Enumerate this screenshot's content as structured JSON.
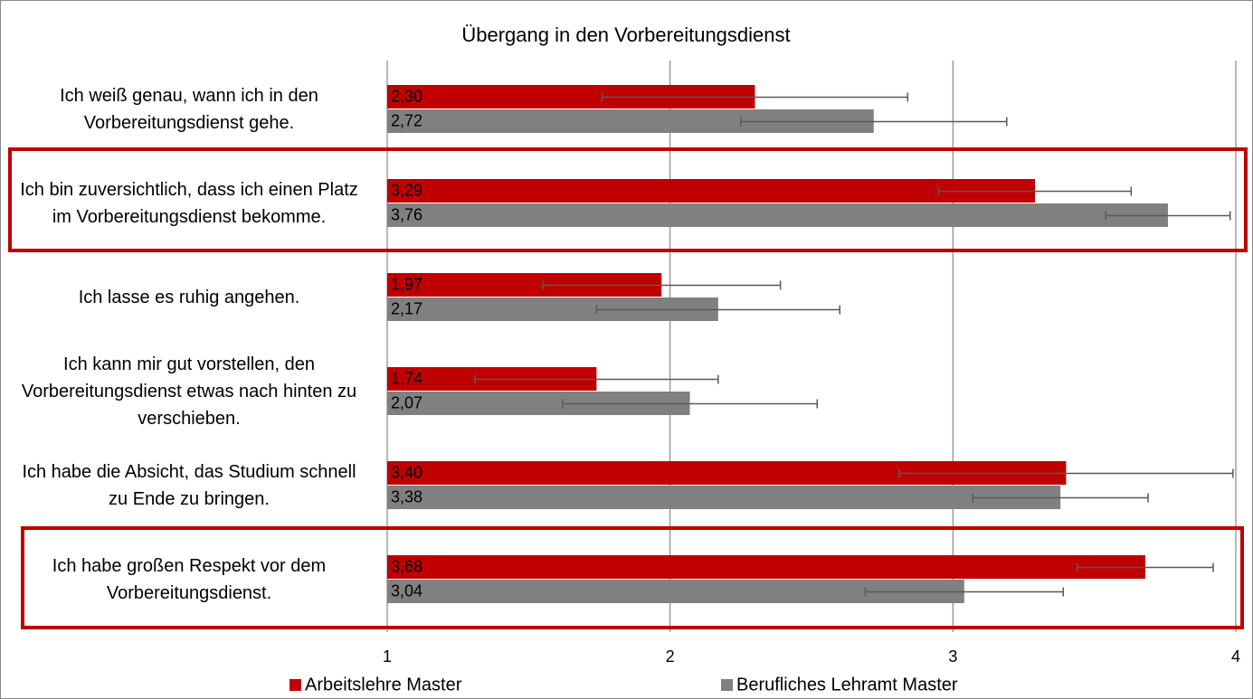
{
  "chart_data": {
    "type": "bar",
    "orientation": "horizontal",
    "title": "Übergang in den Vorbereitungsdienst",
    "categories": [
      "Ich weiß genau, wann ich in den Vorbereitungsdienst gehe.",
      "Ich bin zuversichtlich, dass ich einen Platz im Vorbereitungsdienst bekomme.",
      "Ich lasse es ruhig angehen.",
      "Ich kann mir gut vorstellen, den Vorbereitungsdienst etwas nach hinten zu verschieben.",
      "Ich habe die Absicht, das Studium schnell zu Ende zu bringen.",
      "Ich habe großen Respekt vor dem Vorbereitungsdienst."
    ],
    "series": [
      {
        "name": "Arbeitslehre Master",
        "color": "#c00000",
        "values": [
          2.3,
          3.29,
          1.97,
          1.74,
          3.4,
          3.68
        ],
        "value_labels": [
          "2,30",
          "3,29",
          "1,97",
          "1,74",
          "3,40",
          "3,68"
        ],
        "errors": [
          0.54,
          0.34,
          0.42,
          0.43,
          0.59,
          0.24
        ]
      },
      {
        "name": "Berufliches Lehramt Master",
        "color": "#808080",
        "values": [
          2.72,
          3.76,
          2.17,
          2.07,
          3.38,
          3.04
        ],
        "value_labels": [
          "2,72",
          "3,76",
          "2,17",
          "2,07",
          "3,38",
          "3,04"
        ],
        "errors": [
          0.47,
          0.22,
          0.43,
          0.45,
          0.31,
          0.35
        ]
      }
    ],
    "xlim": [
      1,
      4
    ],
    "xticks": [
      1,
      2,
      3,
      4
    ],
    "grid": true,
    "legend": "bottom"
  }
}
